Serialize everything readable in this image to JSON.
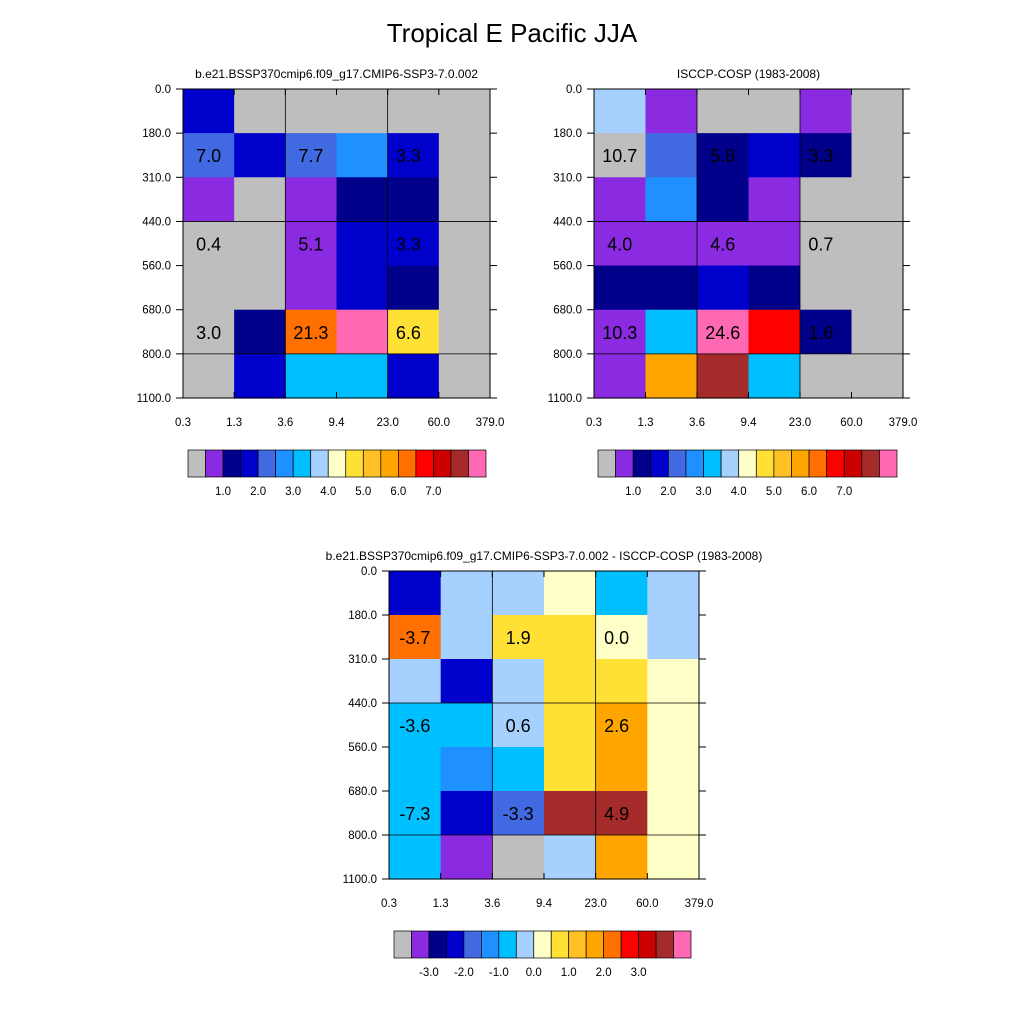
{
  "figure_title": "Tropical E Pacific JJA",
  "chart_data": [
    {
      "type": "heatmap",
      "title": "b.e21.BSSP370cmip6.f09_g17.CMIP6-SSP3-7.0.002",
      "x_ticks": [
        "0.3",
        "1.3",
        "3.6",
        "9.4",
        "23.0",
        "60.0",
        "379.0"
      ],
      "y_ticks": [
        "0.0",
        "180.0",
        "310.0",
        "440.0",
        "560.0",
        "680.0",
        "800.0",
        "1100.0"
      ],
      "cells": [
        [
          "#0000CD",
          "#BEBEBE",
          "#BEBEBE",
          "#BEBEBE",
          "#BEBEBE",
          "#BEBEBE"
        ],
        [
          "#4169E1",
          "#0000CD",
          "#4169E1",
          "#1E90FF",
          "#0000CD",
          "#BEBEBE"
        ],
        [
          "#8A2BE2",
          "#BEBEBE",
          "#8A2BE2",
          "#00008B",
          "#00008B",
          "#BEBEBE"
        ],
        [
          "#BEBEBE",
          "#BEBEBE",
          "#8A2BE2",
          "#0000CD",
          "#0000CD",
          "#BEBEBE"
        ],
        [
          "#BEBEBE",
          "#BEBEBE",
          "#8A2BE2",
          "#0000CD",
          "#00008B",
          "#BEBEBE"
        ],
        [
          "#BEBEBE",
          "#00008B",
          "#FF7000",
          "#FF69B4",
          "#FFE135",
          "#BEBEBE"
        ],
        [
          "#BEBEBE",
          "#0000CD",
          "#00BFFF",
          "#00BFFF",
          "#0000CD",
          "#BEBEBE"
        ]
      ],
      "value_labels": [
        {
          "text": "7.0",
          "x": 0.8,
          "y": 245.0
        },
        {
          "text": "7.7",
          "x": 6.5,
          "y": 245.0
        },
        {
          "text": "3.3",
          "x": 38.0,
          "y": 245.0
        },
        {
          "text": "0.4",
          "x": 0.8,
          "y": 500.0
        },
        {
          "text": "5.1",
          "x": 6.5,
          "y": 500.0
        },
        {
          "text": "3.3",
          "x": 38.0,
          "y": 500.0
        },
        {
          "text": "3.0",
          "x": 0.8,
          "y": 740.0
        },
        {
          "text": "21.3",
          "x": 6.5,
          "y": 740.0
        },
        {
          "text": "6.6",
          "x": 38.0,
          "y": 740.0
        }
      ],
      "colorbar": {
        "colors": [
          "#BEBEBE",
          "#8A2BE2",
          "#00008B",
          "#0000CD",
          "#4169E1",
          "#1E90FF",
          "#00BFFF",
          "#A6D1FF",
          "#FFFFC8",
          "#FFE135",
          "#FFC125",
          "#FFA500",
          "#FF7000",
          "#FF0000",
          "#CD0000",
          "#A52A2A",
          "#FF69B4"
        ],
        "labels": [
          "1.0",
          "2.0",
          "3.0",
          "4.0",
          "5.0",
          "6.0",
          "7.0"
        ]
      }
    },
    {
      "type": "heatmap",
      "title": "ISCCP-COSP (1983-2008)",
      "x_ticks": [
        "0.3",
        "1.3",
        "3.6",
        "9.4",
        "23.0",
        "60.0",
        "379.0"
      ],
      "y_ticks": [
        "0.0",
        "180.0",
        "310.0",
        "440.0",
        "560.0",
        "680.0",
        "800.0",
        "1100.0"
      ],
      "cells": [
        [
          "#A6D1FF",
          "#8A2BE2",
          "#BEBEBE",
          "#BEBEBE",
          "#8A2BE2",
          "#BEBEBE"
        ],
        [
          "#BEBEBE",
          "#4169E1",
          "#00008B",
          "#0000CD",
          "#00008B",
          "#BEBEBE"
        ],
        [
          "#8A2BE2",
          "#1E90FF",
          "#00008B",
          "#8A2BE2",
          "#BEBEBE",
          "#BEBEBE"
        ],
        [
          "#8A2BE2",
          "#8A2BE2",
          "#8A2BE2",
          "#8A2BE2",
          "#BEBEBE",
          "#BEBEBE"
        ],
        [
          "#00008B",
          "#00008B",
          "#0000CD",
          "#00008B",
          "#BEBEBE",
          "#BEBEBE"
        ],
        [
          "#8A2BE2",
          "#00BFFF",
          "#FF69B4",
          "#FF0000",
          "#00008B",
          "#BEBEBE"
        ],
        [
          "#8A2BE2",
          "#FFA500",
          "#A52A2A",
          "#00BFFF",
          "#BEBEBE",
          "#BEBEBE"
        ]
      ],
      "value_labels": [
        {
          "text": "10.7",
          "x": 0.8,
          "y": 245.0
        },
        {
          "text": "5.8",
          "x": 6.5,
          "y": 245.0
        },
        {
          "text": "3.3",
          "x": 38.0,
          "y": 245.0
        },
        {
          "text": "4.0",
          "x": 0.8,
          "y": 500.0
        },
        {
          "text": "4.6",
          "x": 6.5,
          "y": 500.0
        },
        {
          "text": "0.7",
          "x": 38.0,
          "y": 500.0
        },
        {
          "text": "10.3",
          "x": 0.8,
          "y": 740.0
        },
        {
          "text": "24.6",
          "x": 6.5,
          "y": 740.0
        },
        {
          "text": "1.6",
          "x": 38.0,
          "y": 740.0
        }
      ],
      "colorbar": {
        "colors": [
          "#BEBEBE",
          "#8A2BE2",
          "#00008B",
          "#0000CD",
          "#4169E1",
          "#1E90FF",
          "#00BFFF",
          "#A6D1FF",
          "#FFFFC8",
          "#FFE135",
          "#FFC125",
          "#FFA500",
          "#FF7000",
          "#FF0000",
          "#CD0000",
          "#A52A2A",
          "#FF69B4"
        ],
        "labels": [
          "1.0",
          "2.0",
          "3.0",
          "4.0",
          "5.0",
          "6.0",
          "7.0"
        ]
      }
    },
    {
      "type": "heatmap",
      "title": "b.e21.BSSP370cmip6.f09_g17.CMIP6-SSP3-7.0.002 - ISCCP-COSP (1983-2008)",
      "x_ticks": [
        "0.3",
        "1.3",
        "3.6",
        "9.4",
        "23.0",
        "60.0",
        "379.0"
      ],
      "y_ticks": [
        "0.0",
        "180.0",
        "310.0",
        "440.0",
        "560.0",
        "680.0",
        "800.0",
        "1100.0"
      ],
      "cells": [
        [
          "#0000CD",
          "#A6D1FF",
          "#A6D1FF",
          "#FFFFC8",
          "#00BFFF",
          "#A6D1FF"
        ],
        [
          "#FF7000",
          "#A6D1FF",
          "#FFE135",
          "#FFE135",
          "#FFFFC8",
          "#A6D1FF"
        ],
        [
          "#A6D1FF",
          "#0000CD",
          "#A6D1FF",
          "#FFE135",
          "#FFE135",
          "#FFFFC8"
        ],
        [
          "#00BFFF",
          "#00BFFF",
          "#A6D1FF",
          "#FFE135",
          "#FFA500",
          "#FFFFC8"
        ],
        [
          "#00BFFF",
          "#1E90FF",
          "#00BFFF",
          "#FFE135",
          "#FFA500",
          "#FFFFC8"
        ],
        [
          "#00BFFF",
          "#0000CD",
          "#4169E1",
          "#A52A2A",
          "#A52A2A",
          "#FFFFC8"
        ],
        [
          "#00BFFF",
          "#8A2BE2",
          "#BEBEBE",
          "#A6D1FF",
          "#FFA500",
          "#FFFFC8"
        ]
      ],
      "value_labels": [
        {
          "text": "-3.7",
          "x": 0.8,
          "y": 245.0
        },
        {
          "text": "1.9",
          "x": 6.5,
          "y": 245.0
        },
        {
          "text": "0.0",
          "x": 38.0,
          "y": 245.0
        },
        {
          "text": "-3.6",
          "x": 0.8,
          "y": 500.0
        },
        {
          "text": "0.6",
          "x": 6.5,
          "y": 500.0
        },
        {
          "text": "2.6",
          "x": 38.0,
          "y": 500.0
        },
        {
          "text": "-7.3",
          "x": 0.8,
          "y": 740.0
        },
        {
          "text": "-3.3",
          "x": 6.5,
          "y": 740.0
        },
        {
          "text": "4.9",
          "x": 38.0,
          "y": 740.0
        }
      ],
      "colorbar": {
        "colors": [
          "#BEBEBE",
          "#8A2BE2",
          "#00008B",
          "#0000CD",
          "#4169E1",
          "#1E90FF",
          "#00BFFF",
          "#A6D1FF",
          "#FFFFC8",
          "#FFE135",
          "#FFC125",
          "#FFA500",
          "#FF7000",
          "#FF0000",
          "#CD0000",
          "#A52A2A",
          "#FF69B4"
        ],
        "labels": [
          "-3.0",
          "-2.0",
          "-1.0",
          "0.0",
          "1.0",
          "2.0",
          "3.0"
        ]
      }
    }
  ]
}
